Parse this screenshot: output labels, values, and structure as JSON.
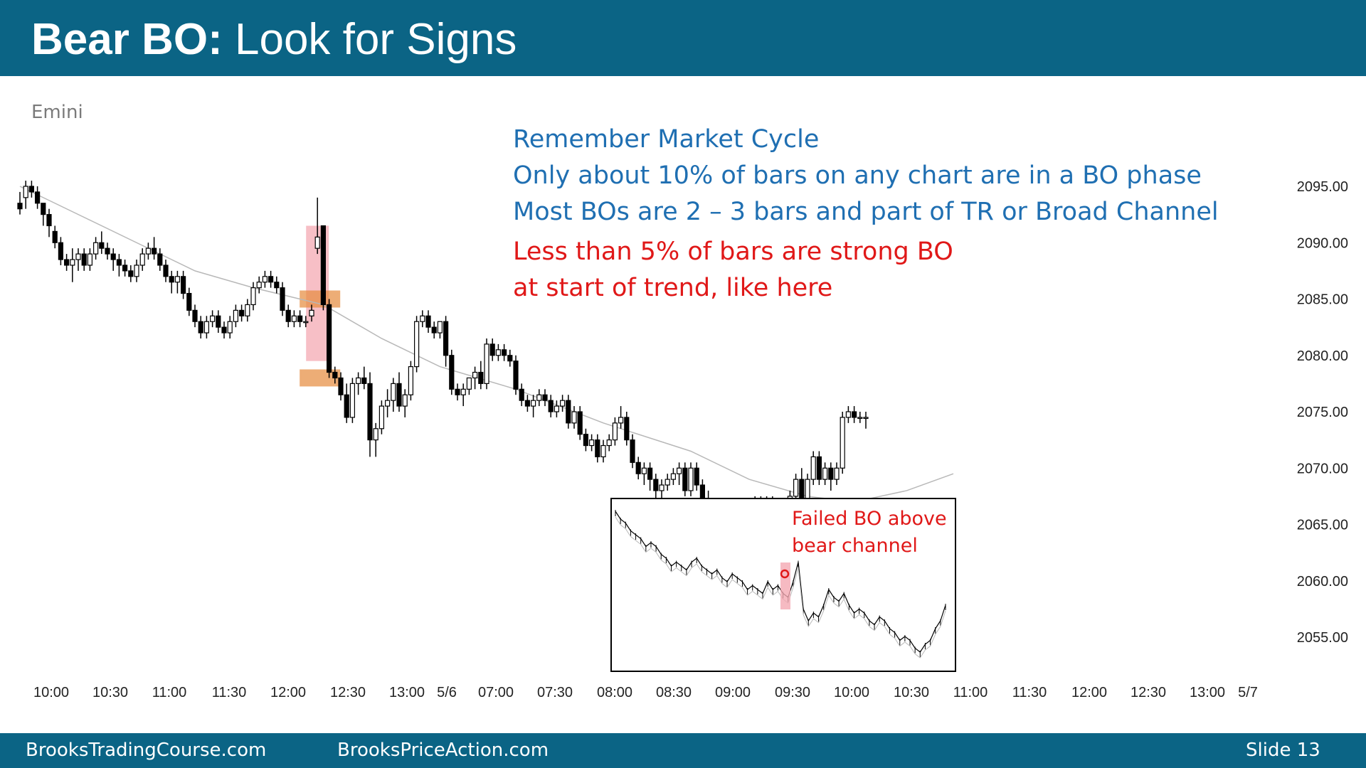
{
  "slide": {
    "title_bold": "Bear BO:",
    "title_rest": " Look for Signs",
    "instrument": "Emini",
    "notes_blue": [
      "Remember Market Cycle",
      "Only about 10% of bars on any chart are in a BO phase",
      "Most BOs are 2 – 3 bars and part of TR or Broad Channel"
    ],
    "notes_red": [
      "Less than 5% of bars are strong BO",
      "at start of trend, like here"
    ],
    "inset_label": [
      "Failed BO above",
      "bear channel"
    ],
    "footer_left": "BrooksTradingCourse.com",
    "footer_mid": "BrooksPriceAction.com",
    "footer_right": "Slide  13"
  },
  "colors": {
    "header_bg": "#0b6485",
    "note_blue": "#1f6fb2",
    "note_red": "#e01818",
    "highlight_pink": "#f4a9b3",
    "highlight_orange": "#e58a3c",
    "ema_line": "#b8b8b8"
  },
  "chart_data": {
    "type": "candlestick",
    "ylim": [
      2050,
      2097
    ],
    "y_ticks": [
      "2095.00",
      "2090.00",
      "2085.00",
      "2080.00",
      "2075.00",
      "2070.00",
      "2065.00",
      "2060.00",
      "2055.00"
    ],
    "x_ticks": [
      "10:00",
      "10:30",
      "11:00",
      "11:30",
      "12:00",
      "12:30",
      "13:00",
      "5/6",
      "07:00",
      "07:30",
      "08:00",
      "08:30",
      "09:00",
      "09:30",
      "10:00",
      "10:30",
      "11:00",
      "11:30",
      "12:00",
      "12:30",
      "13:00",
      "5/7"
    ],
    "ema_path": [
      [
        0,
        2095.0
      ],
      [
        10,
        2092.5
      ],
      [
        20,
        2090.0
      ],
      [
        30,
        2087.5
      ],
      [
        40,
        2086.0
      ],
      [
        52,
        2084.5
      ],
      [
        62,
        2081.5
      ],
      [
        72,
        2079.0
      ],
      [
        85,
        2077.0
      ],
      [
        100,
        2074.0
      ],
      [
        115,
        2071.5
      ],
      [
        125,
        2069.0
      ],
      [
        135,
        2067.5
      ],
      [
        143,
        2067.0
      ],
      [
        152,
        2068.0
      ],
      [
        160,
        2069.5
      ]
    ],
    "candles": [
      [
        2093.5,
        2094.5,
        2092.5,
        2093.0
      ],
      [
        2094.0,
        2095.5,
        2093.0,
        2095.0
      ],
      [
        2095.0,
        2095.5,
        2094.0,
        2094.5
      ],
      [
        2094.5,
        2095.0,
        2093.0,
        2093.5
      ],
      [
        2093.5,
        2093.5,
        2091.5,
        2092.5
      ],
      [
        2092.5,
        2093.0,
        2090.5,
        2091.5
      ],
      [
        2091.0,
        2091.5,
        2089.5,
        2090.0
      ],
      [
        2090.0,
        2090.5,
        2088.0,
        2088.5
      ],
      [
        2088.5,
        2089.0,
        2087.5,
        2088.0
      ],
      [
        2088.0,
        2089.5,
        2086.5,
        2088.5
      ],
      [
        2088.5,
        2089.5,
        2087.5,
        2089.0
      ],
      [
        2089.0,
        2089.5,
        2087.5,
        2088.0
      ],
      [
        2088.0,
        2089.5,
        2087.5,
        2089.0
      ],
      [
        2089.0,
        2090.5,
        2088.5,
        2090.0
      ],
      [
        2090.0,
        2091.0,
        2089.0,
        2089.5
      ],
      [
        2089.5,
        2090.0,
        2088.5,
        2089.0
      ],
      [
        2089.0,
        2089.5,
        2087.5,
        2088.5
      ],
      [
        2088.5,
        2089.0,
        2087.0,
        2088.0
      ],
      [
        2088.0,
        2088.5,
        2087.0,
        2087.5
      ],
      [
        2087.5,
        2088.0,
        2086.5,
        2087.0
      ],
      [
        2087.0,
        2088.5,
        2086.5,
        2088.0
      ],
      [
        2088.0,
        2089.5,
        2087.5,
        2089.0
      ],
      [
        2089.0,
        2090.0,
        2088.5,
        2089.5
      ],
      [
        2089.5,
        2090.5,
        2088.5,
        2089.0
      ],
      [
        2089.0,
        2089.5,
        2087.5,
        2088.0
      ],
      [
        2088.0,
        2088.5,
        2086.5,
        2087.0
      ],
      [
        2087.0,
        2087.5,
        2085.5,
        2086.5
      ],
      [
        2086.5,
        2087.5,
        2085.5,
        2087.0
      ],
      [
        2087.0,
        2087.5,
        2085.0,
        2085.5
      ],
      [
        2085.5,
        2086.0,
        2083.5,
        2084.0
      ],
      [
        2084.0,
        2084.5,
        2082.5,
        2083.0
      ],
      [
        2083.0,
        2083.5,
        2081.5,
        2082.0
      ],
      [
        2082.0,
        2083.5,
        2081.5,
        2083.0
      ],
      [
        2083.0,
        2084.0,
        2082.5,
        2083.5
      ],
      [
        2083.5,
        2084.0,
        2082.0,
        2082.5
      ],
      [
        2082.5,
        2083.0,
        2081.5,
        2082.0
      ],
      [
        2082.0,
        2083.5,
        2081.5,
        2083.0
      ],
      [
        2083.0,
        2084.5,
        2082.5,
        2084.0
      ],
      [
        2084.0,
        2084.5,
        2083.0,
        2083.5
      ],
      [
        2083.5,
        2085.0,
        2083.0,
        2084.5
      ],
      [
        2084.5,
        2086.5,
        2084.0,
        2086.0
      ],
      [
        2086.0,
        2087.0,
        2085.5,
        2086.5
      ],
      [
        2086.5,
        2087.5,
        2086.0,
        2087.0
      ],
      [
        2087.0,
        2087.5,
        2086.0,
        2086.5
      ],
      [
        2086.5,
        2087.0,
        2085.5,
        2086.0
      ],
      [
        2086.0,
        2086.5,
        2083.5,
        2084.0
      ],
      [
        2084.0,
        2084.5,
        2082.5,
        2083.0
      ],
      [
        2083.0,
        2084.0,
        2082.5,
        2083.5
      ],
      [
        2083.5,
        2084.0,
        2082.5,
        2083.0
      ],
      [
        2083.0,
        2083.5,
        2082.5,
        2083.0
      ],
      [
        2083.5,
        2084.5,
        2083.0,
        2084.0
      ],
      [
        2089.5,
        2094.0,
        2089.0,
        2090.5
      ],
      [
        2091.5,
        2091.5,
        2084.0,
        2084.5
      ],
      [
        2084.5,
        2085.0,
        2078.0,
        2078.5
      ],
      [
        2078.5,
        2079.0,
        2077.5,
        2078.0
      ],
      [
        2078.0,
        2078.5,
        2076.0,
        2076.5
      ],
      [
        2076.5,
        2077.5,
        2074.0,
        2074.5
      ],
      [
        2074.5,
        2078.0,
        2074.0,
        2077.5
      ],
      [
        2077.5,
        2078.5,
        2076.5,
        2078.0
      ],
      [
        2078.0,
        2079.0,
        2077.0,
        2077.5
      ],
      [
        2077.5,
        2078.5,
        2071.0,
        2072.5
      ],
      [
        2072.5,
        2074.0,
        2071.0,
        2073.5
      ],
      [
        2073.5,
        2076.0,
        2073.0,
        2075.5
      ],
      [
        2075.5,
        2077.0,
        2074.5,
        2076.0
      ],
      [
        2076.0,
        2078.0,
        2075.0,
        2077.5
      ],
      [
        2077.5,
        2078.5,
        2075.0,
        2075.5
      ],
      [
        2075.5,
        2077.0,
        2074.5,
        2076.5
      ],
      [
        2076.5,
        2079.5,
        2076.0,
        2079.0
      ],
      [
        2079.0,
        2083.5,
        2078.5,
        2083.0
      ],
      [
        2083.0,
        2084.0,
        2082.5,
        2083.5
      ],
      [
        2083.5,
        2084.0,
        2082.0,
        2082.5
      ],
      [
        2082.5,
        2083.0,
        2081.5,
        2082.0
      ],
      [
        2082.0,
        2083.0,
        2081.5,
        2083.0
      ],
      [
        2083.0,
        2083.5,
        2079.0,
        2080.0
      ],
      [
        2080.0,
        2080.5,
        2076.5,
        2077.0
      ],
      [
        2077.0,
        2077.5,
        2076.0,
        2076.5
      ],
      [
        2076.5,
        2077.5,
        2075.5,
        2077.0
      ],
      [
        2077.0,
        2078.0,
        2076.5,
        2078.0
      ],
      [
        2078.0,
        2079.0,
        2077.0,
        2078.5
      ],
      [
        2078.5,
        2079.5,
        2077.0,
        2077.5
      ],
      [
        2077.5,
        2081.5,
        2077.0,
        2081.0
      ],
      [
        2081.0,
        2081.5,
        2079.5,
        2080.0
      ],
      [
        2080.0,
        2081.0,
        2079.5,
        2080.5
      ],
      [
        2080.5,
        2081.0,
        2079.5,
        2080.0
      ],
      [
        2080.0,
        2080.5,
        2079.0,
        2079.5
      ],
      [
        2079.5,
        2080.0,
        2076.5,
        2077.0
      ],
      [
        2077.0,
        2077.5,
        2075.5,
        2076.0
      ],
      [
        2076.0,
        2076.5,
        2075.0,
        2075.5
      ],
      [
        2075.5,
        2076.5,
        2074.5,
        2076.0
      ],
      [
        2076.0,
        2077.0,
        2075.5,
        2076.5
      ],
      [
        2076.5,
        2077.0,
        2075.5,
        2076.0
      ],
      [
        2076.0,
        2076.5,
        2074.5,
        2075.0
      ],
      [
        2075.0,
        2076.0,
        2074.5,
        2075.5
      ],
      [
        2075.5,
        2076.5,
        2075.0,
        2076.0
      ],
      [
        2076.0,
        2076.5,
        2073.5,
        2074.0
      ],
      [
        2074.0,
        2075.5,
        2073.5,
        2075.0
      ],
      [
        2075.0,
        2075.5,
        2072.5,
        2073.0
      ],
      [
        2073.0,
        2073.5,
        2071.5,
        2072.0
      ],
      [
        2072.0,
        2073.0,
        2071.5,
        2072.5
      ],
      [
        2072.5,
        2073.0,
        2070.5,
        2071.0
      ],
      [
        2071.0,
        2072.5,
        2070.5,
        2072.0
      ],
      [
        2072.0,
        2073.0,
        2071.5,
        2072.5
      ],
      [
        2072.5,
        2074.5,
        2072.0,
        2074.0
      ],
      [
        2074.0,
        2075.5,
        2073.5,
        2074.5
      ],
      [
        2074.5,
        2075.0,
        2072.0,
        2072.5
      ],
      [
        2072.5,
        2073.0,
        2070.0,
        2070.5
      ],
      [
        2070.5,
        2071.0,
        2069.0,
        2069.5
      ],
      [
        2069.5,
        2070.5,
        2068.5,
        2070.0
      ],
      [
        2070.0,
        2070.5,
        2068.0,
        2069.0
      ],
      [
        2069.0,
        2069.5,
        2067.0,
        2068.0
      ],
      [
        2068.0,
        2069.0,
        2067.0,
        2068.5
      ],
      [
        2068.5,
        2069.5,
        2068.0,
        2069.0
      ],
      [
        2069.0,
        2070.0,
        2068.5,
        2069.5
      ],
      [
        2069.5,
        2070.5,
        2068.5,
        2070.0
      ],
      [
        2070.0,
        2070.5,
        2067.5,
        2068.0
      ],
      [
        2068.0,
        2070.5,
        2067.5,
        2070.0
      ],
      [
        2070.0,
        2070.5,
        2068.0,
        2068.5
      ],
      [
        2068.5,
        2069.0,
        2066.5,
        2067.0
      ],
      [
        2067.0,
        2068.0,
        2064.5,
        2065.5
      ],
      [
        2065.5,
        2066.0,
        2063.5,
        2064.0
      ],
      [
        2064.0,
        2064.5,
        2061.5,
        2063.0
      ],
      [
        2063.0,
        2065.0,
        2062.5,
        2064.5
      ],
      [
        2064.5,
        2065.0,
        2063.5,
        2064.0
      ],
      [
        2064.0,
        2065.0,
        2063.5,
        2064.5
      ],
      [
        2064.5,
        2066.0,
        2064.0,
        2065.5
      ],
      [
        2065.5,
        2067.0,
        2065.0,
        2066.0
      ],
      [
        2066.0,
        2067.5,
        2065.5,
        2067.0
      ],
      [
        2067.0,
        2067.5,
        2065.5,
        2066.0
      ],
      [
        2066.0,
        2067.5,
        2065.5,
        2067.0
      ],
      [
        2067.0,
        2067.5,
        2065.0,
        2065.5
      ],
      [
        2065.5,
        2066.0,
        2063.0,
        2064.0
      ],
      [
        2064.0,
        2066.5,
        2063.5,
        2066.0
      ],
      [
        2066.0,
        2068.0,
        2065.5,
        2067.5
      ],
      [
        2067.5,
        2069.5,
        2067.0,
        2069.0
      ],
      [
        2069.0,
        2070.0,
        2066.5,
        2067.0
      ],
      [
        2067.0,
        2069.5,
        2066.5,
        2069.0
      ],
      [
        2069.0,
        2071.5,
        2068.5,
        2071.0
      ],
      [
        2071.0,
        2071.5,
        2068.5,
        2069.0
      ],
      [
        2069.0,
        2070.5,
        2068.5,
        2070.0
      ],
      [
        2070.0,
        2070.5,
        2068.0,
        2069.0
      ],
      [
        2069.0,
        2070.5,
        2068.5,
        2070.0
      ],
      [
        2070.0,
        2075.0,
        2069.5,
        2074.5
      ],
      [
        2074.5,
        2075.5,
        2074.0,
        2075.0
      ],
      [
        2075.0,
        2075.5,
        2074.0,
        2074.5
      ],
      [
        2074.5,
        2075.0,
        2074.0,
        2074.5
      ],
      [
        2074.5,
        2075.0,
        2073.5,
        2074.5
      ]
    ],
    "highlighted_bar_index": 51
  }
}
